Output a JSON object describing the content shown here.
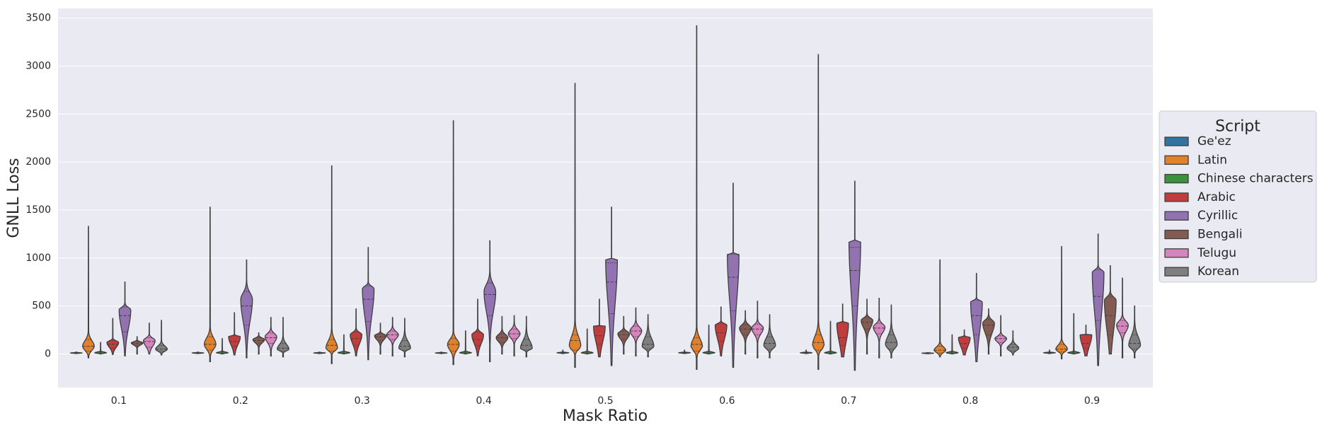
{
  "chart_data": {
    "type": "violin",
    "xlabel": "Mask Ratio",
    "ylabel": "GNLL Loss",
    "categories": [
      "0.1",
      "0.2",
      "0.3",
      "0.4",
      "0.5",
      "0.6",
      "0.7",
      "0.8",
      "0.9"
    ],
    "ylim": [
      -350,
      3600
    ],
    "yticks": [
      0,
      500,
      1000,
      1500,
      2000,
      2500,
      3000,
      3500
    ],
    "grid": true,
    "legend": {
      "title": "Script",
      "placement": "right"
    },
    "series": [
      {
        "name": "Ge'ez",
        "color": "#3274a1",
        "min": [
          4,
          4,
          4,
          4,
          4,
          4,
          4,
          3,
          4
        ],
        "q1": [
          7,
          7,
          7,
          7,
          8,
          8,
          8,
          5,
          8
        ],
        "median": [
          10,
          10,
          10,
          10,
          12,
          12,
          12,
          8,
          12
        ],
        "q3": [
          14,
          14,
          14,
          14,
          17,
          17,
          17,
          11,
          17
        ],
        "max": [
          20,
          20,
          20,
          20,
          40,
          40,
          40,
          15,
          40
        ],
        "mode": [
          10,
          10,
          10,
          10,
          12,
          12,
          12,
          8,
          12
        ]
      },
      {
        "name": "Latin",
        "color": "#e1812c",
        "min": [
          -40,
          -80,
          -100,
          -110,
          -140,
          -160,
          -160,
          -30,
          -50
        ],
        "q1": [
          30,
          40,
          30,
          30,
          40,
          30,
          40,
          10,
          20
        ],
        "median": [
          80,
          100,
          90,
          100,
          140,
          100,
          120,
          40,
          50
        ],
        "q3": [
          150,
          180,
          150,
          160,
          200,
          170,
          200,
          80,
          100
        ],
        "max": [
          1330,
          1530,
          1960,
          2430,
          2820,
          3420,
          3120,
          980,
          1120
        ],
        "mode": [
          80,
          100,
          60,
          100,
          80,
          80,
          90,
          40,
          50
        ]
      },
      {
        "name": "Chinese characters",
        "color": "#3a923a",
        "min": [
          0,
          0,
          0,
          0,
          0,
          0,
          0,
          0,
          0
        ],
        "q1": [
          6,
          6,
          6,
          6,
          6,
          6,
          6,
          6,
          6
        ],
        "median": [
          12,
          12,
          12,
          12,
          12,
          12,
          12,
          12,
          12
        ],
        "q3": [
          22,
          22,
          22,
          22,
          22,
          22,
          22,
          22,
          22
        ],
        "max": [
          120,
          160,
          200,
          240,
          260,
          300,
          340,
          200,
          420
        ],
        "mode": [
          12,
          12,
          12,
          12,
          12,
          12,
          12,
          12,
          12
        ]
      },
      {
        "name": "Arabic",
        "color": "#c03d3e",
        "min": [
          -5,
          -10,
          -20,
          -20,
          -30,
          -20,
          -30,
          -10,
          -20
        ],
        "q1": [
          60,
          80,
          90,
          90,
          100,
          130,
          90,
          60,
          60
        ],
        "median": [
          100,
          130,
          160,
          150,
          190,
          220,
          170,
          110,
          110
        ],
        "q3": [
          140,
          190,
          230,
          230,
          290,
          320,
          330,
          180,
          200
        ],
        "max": [
          370,
          430,
          470,
          570,
          570,
          490,
          520,
          250,
          300
        ],
        "mode": [
          120,
          180,
          200,
          200,
          290,
          300,
          320,
          170,
          200
        ]
      },
      {
        "name": "Cyrillic",
        "color": "#9372b2",
        "min": [
          -20,
          -40,
          -60,
          -80,
          -120,
          -140,
          -170,
          -80,
          -120
        ],
        "q1": [
          230,
          300,
          340,
          400,
          420,
          450,
          500,
          200,
          350
        ],
        "median": [
          400,
          500,
          570,
          620,
          750,
          800,
          870,
          400,
          600
        ],
        "q3": [
          490,
          650,
          710,
          740,
          950,
          1040,
          1110,
          560,
          880
        ],
        "max": [
          750,
          980,
          1110,
          1180,
          1530,
          1780,
          1800,
          840,
          1250
        ],
        "mode": [
          460,
          570,
          680,
          650,
          980,
          1040,
          1180,
          540,
          850
        ]
      },
      {
        "name": "Bengali",
        "color": "#845b53",
        "min": [
          0,
          0,
          0,
          0,
          0,
          0,
          0,
          0,
          0
        ],
        "q1": [
          90,
          110,
          140,
          120,
          150,
          200,
          260,
          200,
          200
        ],
        "median": [
          110,
          140,
          180,
          170,
          200,
          260,
          330,
          300,
          400
        ],
        "q3": [
          130,
          170,
          210,
          210,
          240,
          310,
          380,
          360,
          600
        ],
        "max": [
          180,
          220,
          320,
          390,
          390,
          450,
          570,
          470,
          920
        ],
        "mode": [
          115,
          150,
          190,
          170,
          210,
          270,
          350,
          320,
          560
        ]
      },
      {
        "name": "Telugu",
        "color": "#d684bd",
        "min": [
          0,
          -20,
          -20,
          -20,
          -20,
          -40,
          -40,
          -20,
          -40
        ],
        "q1": [
          70,
          110,
          150,
          160,
          180,
          200,
          210,
          120,
          220
        ],
        "median": [
          130,
          170,
          200,
          210,
          240,
          260,
          270,
          160,
          290
        ],
        "q3": [
          170,
          220,
          240,
          260,
          290,
          310,
          320,
          190,
          350
        ],
        "max": [
          320,
          380,
          380,
          400,
          480,
          550,
          580,
          400,
          790
        ],
        "mode": [
          140,
          180,
          200,
          210,
          240,
          270,
          280,
          160,
          300
        ]
      },
      {
        "name": "Korean",
        "color": "#7f7f7f",
        "min": [
          -10,
          -30,
          -30,
          -30,
          -30,
          -40,
          -40,
          -10,
          -40
        ],
        "q1": [
          25,
          30,
          40,
          40,
          50,
          50,
          50,
          30,
          50
        ],
        "median": [
          50,
          60,
          80,
          90,
          100,
          110,
          120,
          70,
          110
        ],
        "q3": [
          90,
          110,
          140,
          150,
          180,
          180,
          200,
          100,
          200
        ],
        "max": [
          350,
          380,
          370,
          390,
          410,
          410,
          510,
          240,
          500
        ],
        "mode": [
          50,
          50,
          60,
          60,
          80,
          90,
          100,
          60,
          90
        ]
      }
    ]
  }
}
